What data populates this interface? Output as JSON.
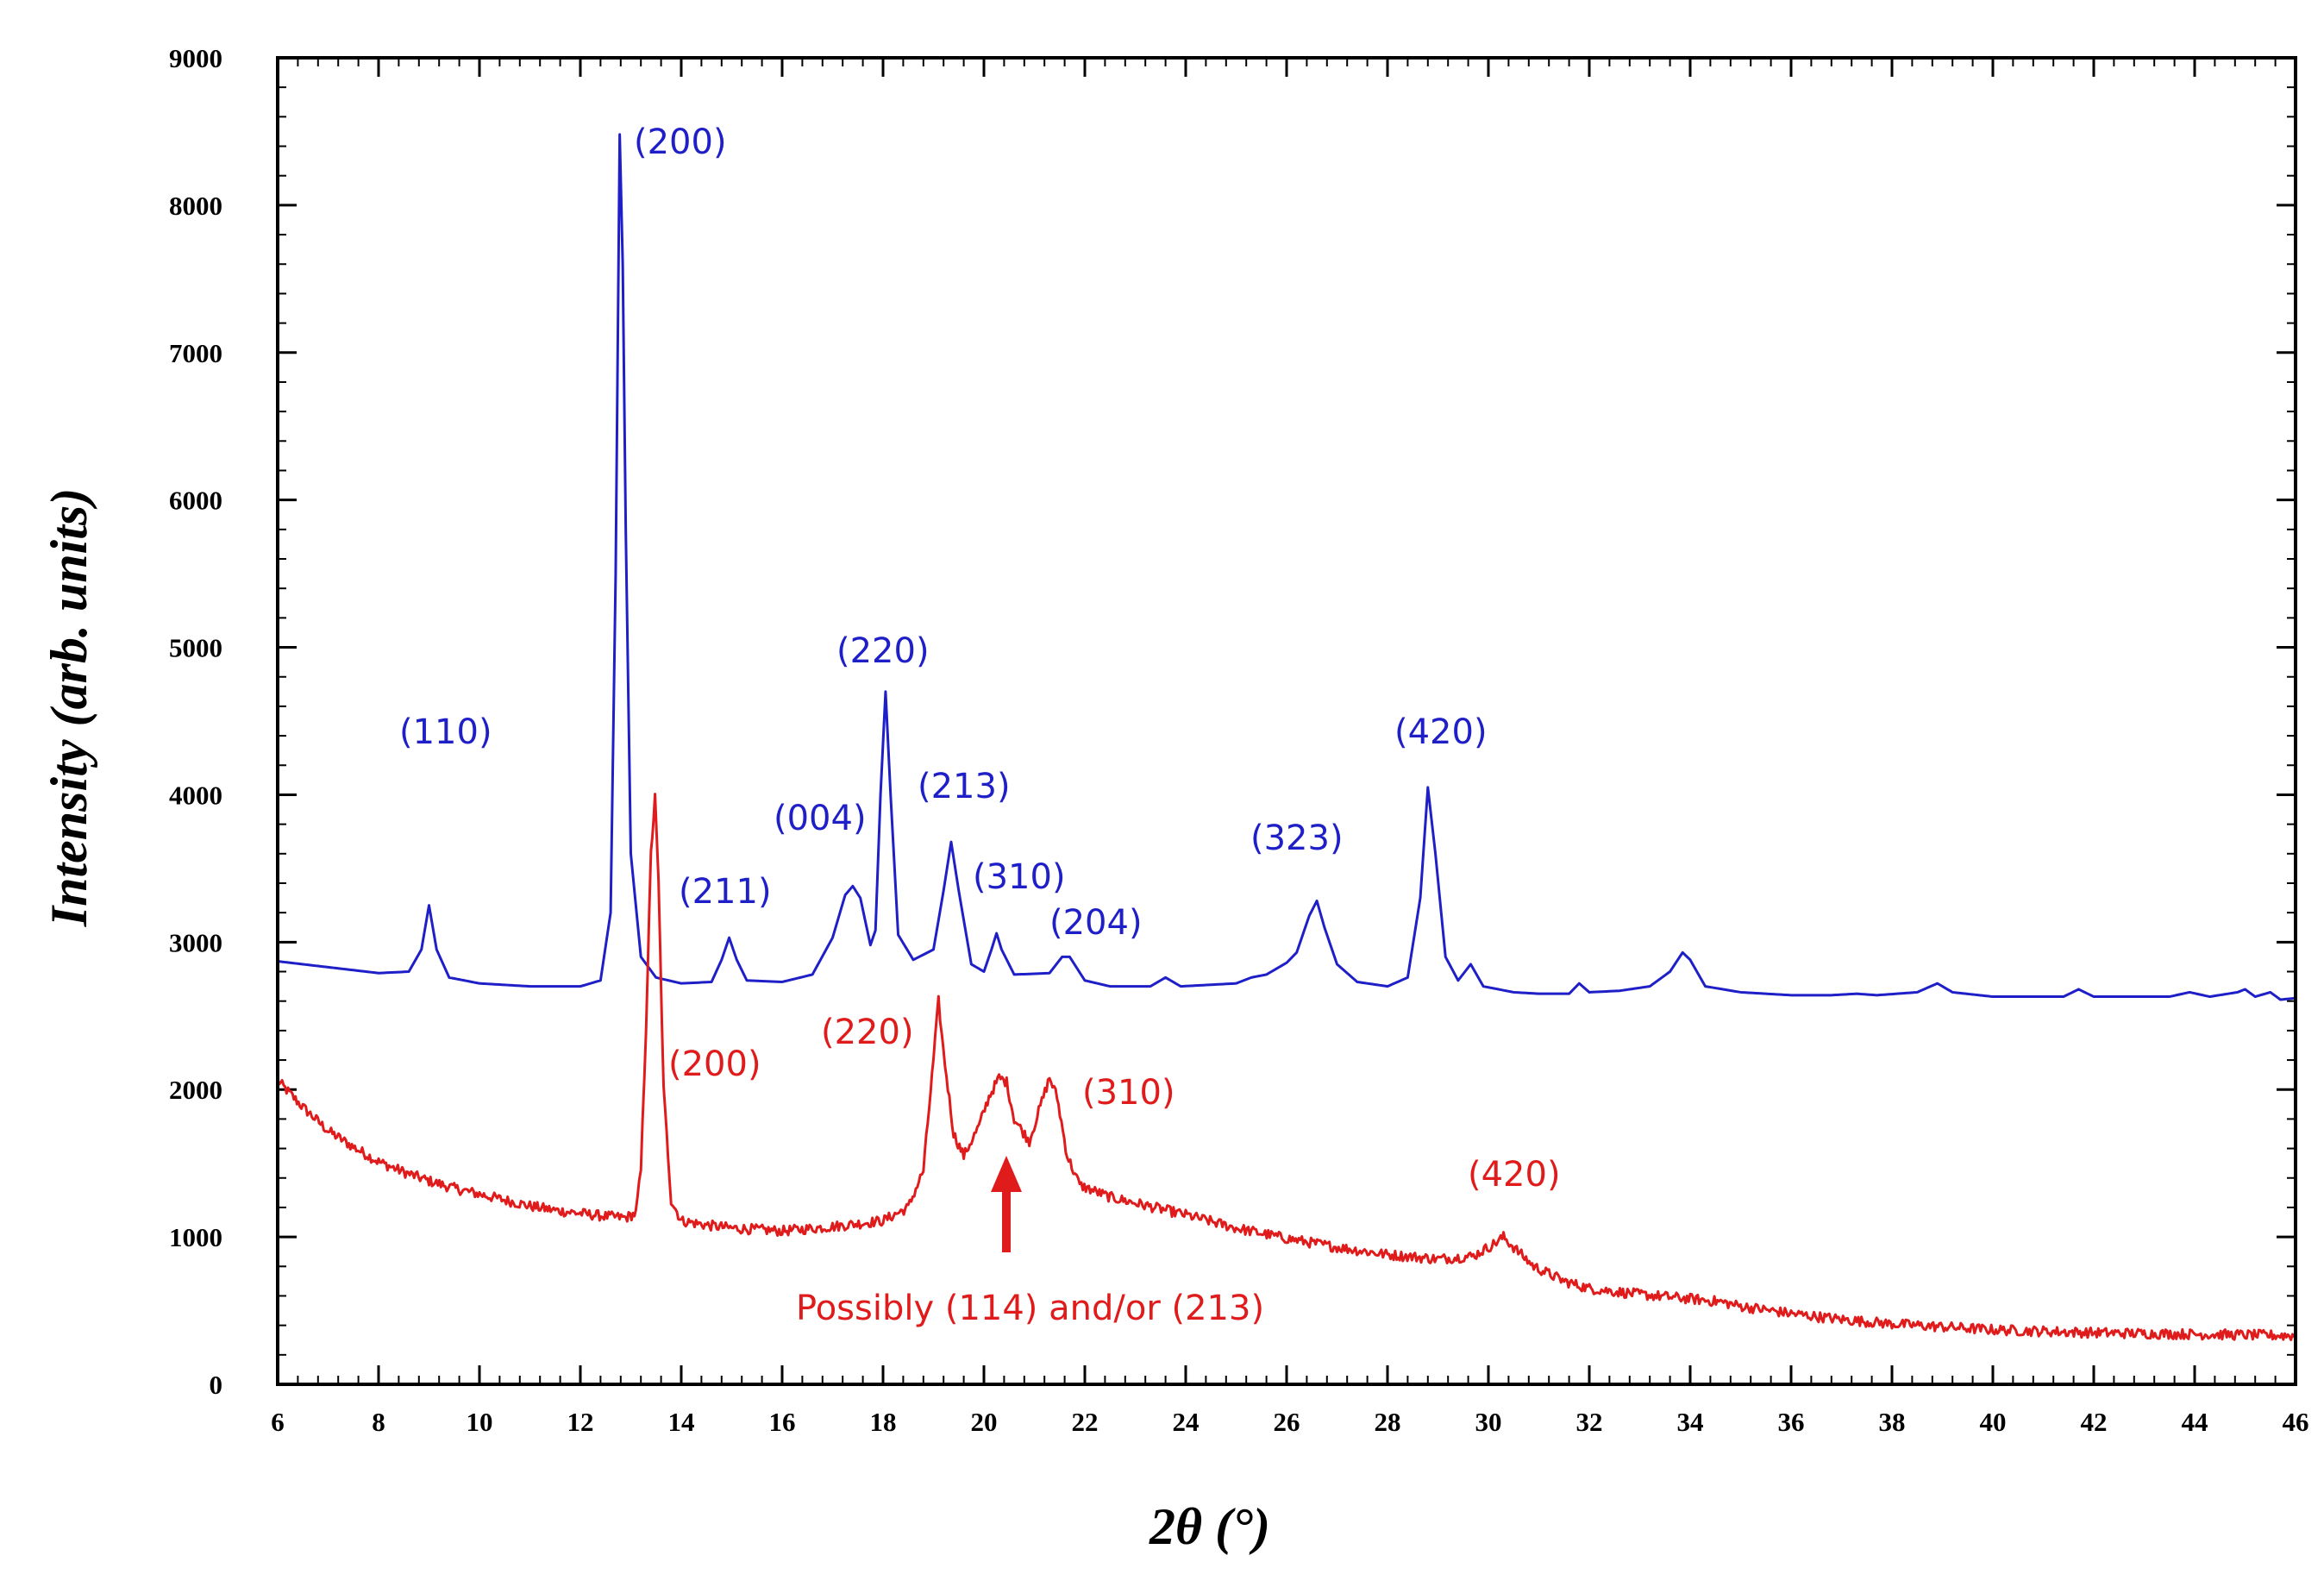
{
  "chart_data": {
    "type": "line",
    "title": "",
    "xlabel": "2θ (°)",
    "ylabel": "Intensity (arb. units)",
    "xlim": [
      6,
      46
    ],
    "ylim": [
      0,
      9000
    ],
    "xticks": [
      6,
      8,
      10,
      12,
      14,
      16,
      18,
      20,
      22,
      24,
      26,
      28,
      30,
      32,
      34,
      36,
      38,
      40,
      42,
      44,
      46
    ],
    "yticks": [
      0,
      1000,
      2000,
      3000,
      4000,
      5000,
      6000,
      7000,
      8000,
      9000
    ],
    "grid": false,
    "colors": {
      "blue": "#1f1fc8",
      "red": "#e01b1b"
    },
    "series": [
      {
        "name": "blue",
        "color": "#1f1fc8",
        "points": [
          [
            6,
            2870
          ],
          [
            7,
            2830
          ],
          [
            8,
            2790
          ],
          [
            8.6,
            2800
          ],
          [
            8.85,
            2950
          ],
          [
            9.0,
            3250
          ],
          [
            9.15,
            2950
          ],
          [
            9.4,
            2760
          ],
          [
            10,
            2720
          ],
          [
            11,
            2700
          ],
          [
            12,
            2700
          ],
          [
            12.4,
            2740
          ],
          [
            12.6,
            3200
          ],
          [
            12.7,
            5500
          ],
          [
            12.78,
            8480
          ],
          [
            12.84,
            7600
          ],
          [
            12.9,
            5800
          ],
          [
            13.0,
            3600
          ],
          [
            13.2,
            2900
          ],
          [
            13.5,
            2760
          ],
          [
            14,
            2720
          ],
          [
            14.6,
            2730
          ],
          [
            14.8,
            2880
          ],
          [
            14.95,
            3030
          ],
          [
            15.1,
            2880
          ],
          [
            15.3,
            2740
          ],
          [
            16,
            2730
          ],
          [
            16.6,
            2780
          ],
          [
            17.0,
            3030
          ],
          [
            17.25,
            3320
          ],
          [
            17.4,
            3380
          ],
          [
            17.55,
            3300
          ],
          [
            17.75,
            2980
          ],
          [
            17.85,
            3080
          ],
          [
            17.95,
            4000
          ],
          [
            18.05,
            4700
          ],
          [
            18.15,
            4000
          ],
          [
            18.3,
            3050
          ],
          [
            18.6,
            2880
          ],
          [
            19.0,
            2950
          ],
          [
            19.2,
            3350
          ],
          [
            19.35,
            3680
          ],
          [
            19.5,
            3350
          ],
          [
            19.75,
            2850
          ],
          [
            20.0,
            2800
          ],
          [
            20.15,
            2950
          ],
          [
            20.25,
            3060
          ],
          [
            20.35,
            2950
          ],
          [
            20.6,
            2780
          ],
          [
            21.3,
            2790
          ],
          [
            21.55,
            2900
          ],
          [
            21.7,
            2900
          ],
          [
            22.0,
            2740
          ],
          [
            22.5,
            2700
          ],
          [
            23.3,
            2700
          ],
          [
            23.6,
            2760
          ],
          [
            23.9,
            2700
          ],
          [
            25.0,
            2720
          ],
          [
            25.3,
            2760
          ],
          [
            25.6,
            2780
          ],
          [
            26.0,
            2860
          ],
          [
            26.2,
            2930
          ],
          [
            26.45,
            3180
          ],
          [
            26.6,
            3280
          ],
          [
            26.75,
            3100
          ],
          [
            27.0,
            2850
          ],
          [
            27.4,
            2730
          ],
          [
            28.0,
            2700
          ],
          [
            28.4,
            2760
          ],
          [
            28.65,
            3300
          ],
          [
            28.8,
            4050
          ],
          [
            28.95,
            3600
          ],
          [
            29.15,
            2900
          ],
          [
            29.4,
            2740
          ],
          [
            29.65,
            2850
          ],
          [
            29.9,
            2700
          ],
          [
            30.5,
            2660
          ],
          [
            31.0,
            2650
          ],
          [
            31.6,
            2650
          ],
          [
            31.8,
            2720
          ],
          [
            32.0,
            2660
          ],
          [
            32.6,
            2670
          ],
          [
            33.2,
            2700
          ],
          [
            33.6,
            2800
          ],
          [
            33.85,
            2930
          ],
          [
            34.0,
            2880
          ],
          [
            34.3,
            2700
          ],
          [
            35.0,
            2660
          ],
          [
            36.0,
            2640
          ],
          [
            36.8,
            2640
          ],
          [
            37.3,
            2650
          ],
          [
            37.7,
            2640
          ],
          [
            38.5,
            2660
          ],
          [
            38.9,
            2720
          ],
          [
            39.2,
            2660
          ],
          [
            40.0,
            2630
          ],
          [
            41.4,
            2630
          ],
          [
            41.7,
            2680
          ],
          [
            42.0,
            2630
          ],
          [
            43.5,
            2630
          ],
          [
            43.9,
            2660
          ],
          [
            44.3,
            2630
          ],
          [
            44.85,
            2660
          ],
          [
            45.0,
            2680
          ],
          [
            45.2,
            2630
          ],
          [
            45.5,
            2660
          ],
          [
            45.7,
            2610
          ],
          [
            46,
            2620
          ]
        ]
      },
      {
        "name": "red",
        "color": "#e01b1b",
        "points": [
          [
            6,
            2060
          ],
          [
            6.5,
            1880
          ],
          [
            7,
            1720
          ],
          [
            7.5,
            1610
          ],
          [
            8,
            1510
          ],
          [
            8.5,
            1440
          ],
          [
            9,
            1380
          ],
          [
            9.5,
            1330
          ],
          [
            10,
            1290
          ],
          [
            10.5,
            1250
          ],
          [
            11,
            1210
          ],
          [
            11.5,
            1180
          ],
          [
            12,
            1160
          ],
          [
            12.5,
            1140
          ],
          [
            12.9,
            1130
          ],
          [
            13.1,
            1160
          ],
          [
            13.2,
            1450
          ],
          [
            13.3,
            2400
          ],
          [
            13.4,
            3600
          ],
          [
            13.48,
            3980
          ],
          [
            13.55,
            3400
          ],
          [
            13.65,
            2000
          ],
          [
            13.8,
            1250
          ],
          [
            14.0,
            1110
          ],
          [
            14.5,
            1080
          ],
          [
            15,
            1060
          ],
          [
            16,
            1040
          ],
          [
            17,
            1070
          ],
          [
            18,
            1110
          ],
          [
            18.5,
            1200
          ],
          [
            18.8,
            1450
          ],
          [
            19.0,
            2200
          ],
          [
            19.1,
            2600
          ],
          [
            19.2,
            2250
          ],
          [
            19.4,
            1700
          ],
          [
            19.6,
            1550
          ],
          [
            19.9,
            1750
          ],
          [
            20.1,
            1950
          ],
          [
            20.3,
            2080
          ],
          [
            20.45,
            2050
          ],
          [
            20.6,
            1800
          ],
          [
            20.9,
            1650
          ],
          [
            21.15,
            1920
          ],
          [
            21.3,
            2080
          ],
          [
            21.45,
            1950
          ],
          [
            21.65,
            1550
          ],
          [
            21.9,
            1350
          ],
          [
            22.5,
            1270
          ],
          [
            23,
            1230
          ],
          [
            24,
            1150
          ],
          [
            25,
            1060
          ],
          [
            26,
            990
          ],
          [
            27,
            930
          ],
          [
            28,
            880
          ],
          [
            29,
            850
          ],
          [
            29.7,
            870
          ],
          [
            30.1,
            950
          ],
          [
            30.3,
            1000
          ],
          [
            30.5,
            930
          ],
          [
            30.9,
            800
          ],
          [
            31.5,
            700
          ],
          [
            32,
            650
          ],
          [
            33,
            610
          ],
          [
            34,
            580
          ],
          [
            34.6,
            560
          ],
          [
            35,
            530
          ],
          [
            36,
            480
          ],
          [
            37,
            440
          ],
          [
            38,
            410
          ],
          [
            39,
            390
          ],
          [
            40,
            370
          ],
          [
            41,
            360
          ],
          [
            42,
            350
          ],
          [
            43,
            345
          ],
          [
            44,
            340
          ],
          [
            45,
            335
          ],
          [
            46,
            330
          ]
        ]
      }
    ],
    "annotations": [
      {
        "text": "(200)",
        "series": "blue"
      },
      {
        "text": "(110)",
        "series": "blue"
      },
      {
        "text": "(211)",
        "series": "blue"
      },
      {
        "text": "(004)",
        "series": "blue"
      },
      {
        "text": "(220)",
        "series": "blue"
      },
      {
        "text": "(213)",
        "series": "blue"
      },
      {
        "text": "(310)",
        "series": "blue"
      },
      {
        "text": "(204)",
        "series": "blue"
      },
      {
        "text": "(323)",
        "series": "blue"
      },
      {
        "text": "(420)",
        "series": "blue"
      },
      {
        "text": "(200)",
        "series": "red"
      },
      {
        "text": "(220)",
        "series": "red"
      },
      {
        "text": "(310)",
        "series": "red"
      },
      {
        "text": "(420)",
        "series": "red"
      },
      {
        "text": "Possibly (114) and/or (213)",
        "series": "red"
      }
    ]
  }
}
